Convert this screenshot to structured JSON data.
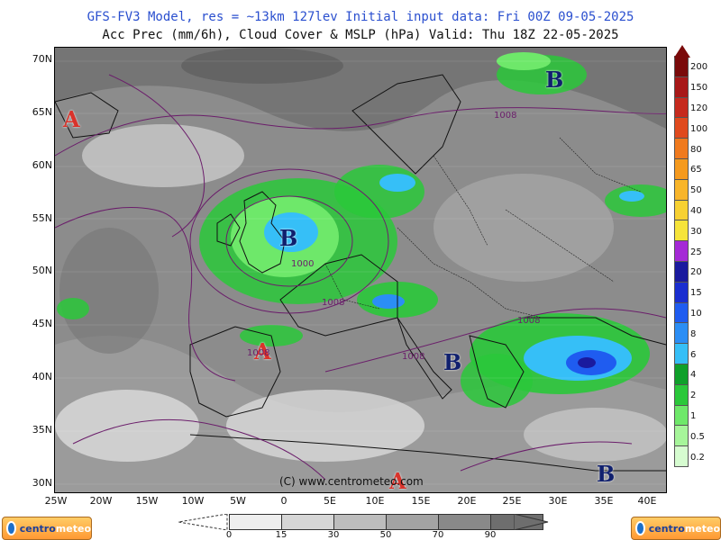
{
  "header": {
    "title_line1": "GFS-FV3 Model, res = ~13km 127lev   Initial input data: Fri 00Z 09-05-2025",
    "title_line2": "Acc Prec (mm/6h), Cloud Cover & MSLP (hPa)  Valid: Thu 18Z 22-05-2025"
  },
  "axes": {
    "lat_labels": [
      "70N",
      "65N",
      "60N",
      "55N",
      "50N",
      "45N",
      "40N",
      "35N",
      "30N"
    ],
    "lon_labels": [
      "25W",
      "20W",
      "15W",
      "10W",
      "5W",
      "0",
      "5E",
      "10E",
      "15E",
      "20E",
      "25E",
      "30E",
      "35E",
      "40E"
    ]
  },
  "pressure_centers": {
    "high_label": "A",
    "low_label": "B"
  },
  "isobar_labels": [
    "1008",
    "1008",
    "1000",
    "1008",
    "1008",
    "1008",
    "1008"
  ],
  "copyright": "(C) www.centrometeo.com",
  "precip_scale": {
    "labels": [
      "200",
      "150",
      "120",
      "100",
      "80",
      "65",
      "50",
      "40",
      "30",
      "25",
      "20",
      "15",
      "10",
      "8",
      "6",
      "4",
      "2",
      "1",
      "0.5",
      "0.2"
    ],
    "colors": [
      "#7a0a0a",
      "#a81818",
      "#c62a1e",
      "#e04a1e",
      "#f07a1e",
      "#f59a1e",
      "#f8b52a",
      "#f7d132",
      "#f6e43a",
      "#a52ad6",
      "#1a1a9e",
      "#1a2ed0",
      "#1f5cf0",
      "#2b8ef5",
      "#36bff7",
      "#0fa02a",
      "#2ac83a",
      "#6ee86a",
      "#a6f59a",
      "#d6fcd0"
    ]
  },
  "cloud_scale": {
    "labels": [
      "0",
      "15",
      "30",
      "50",
      "70",
      "90"
    ],
    "colors": [
      "#eeeeee",
      "#d6d6d6",
      "#bdbdbd",
      "#a3a3a3",
      "#898989",
      "#6e6e6e"
    ]
  },
  "logos": {
    "part1": "centro",
    "part2": "meteo"
  },
  "colors": {
    "high": "#d9332b",
    "low": "#10206e",
    "isobar": "#6b1e6b",
    "title_blue": "#2a4fcf"
  }
}
